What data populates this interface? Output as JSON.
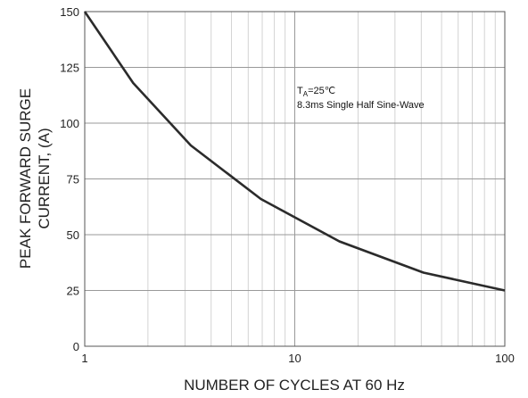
{
  "chart_data": {
    "type": "line",
    "title": "",
    "xlabel": "NUMBER OF CYCLES AT 60 Hz",
    "ylabel_lines": [
      "PEAK FORWARD SURGE",
      "CURRENT, (A)"
    ],
    "x_scale": "log",
    "xlim": [
      1,
      100
    ],
    "ylim": [
      0,
      150
    ],
    "x_ticks": [
      1,
      10,
      100
    ],
    "y_ticks": [
      0,
      25,
      50,
      75,
      100,
      125,
      150
    ],
    "grid": true,
    "legend": "none",
    "annotation": {
      "line1_main": "T",
      "line1_sub": "A",
      "line1_rest": "=25℃",
      "line2": "8.3ms Single Half Sine-Wave"
    },
    "series": [
      {
        "color": "#2b2b2b",
        "x": [
          1,
          1.7,
          3.2,
          6.9,
          16.3,
          41,
          100
        ],
        "y": [
          150,
          118,
          90,
          66,
          47,
          33,
          25
        ]
      }
    ]
  }
}
